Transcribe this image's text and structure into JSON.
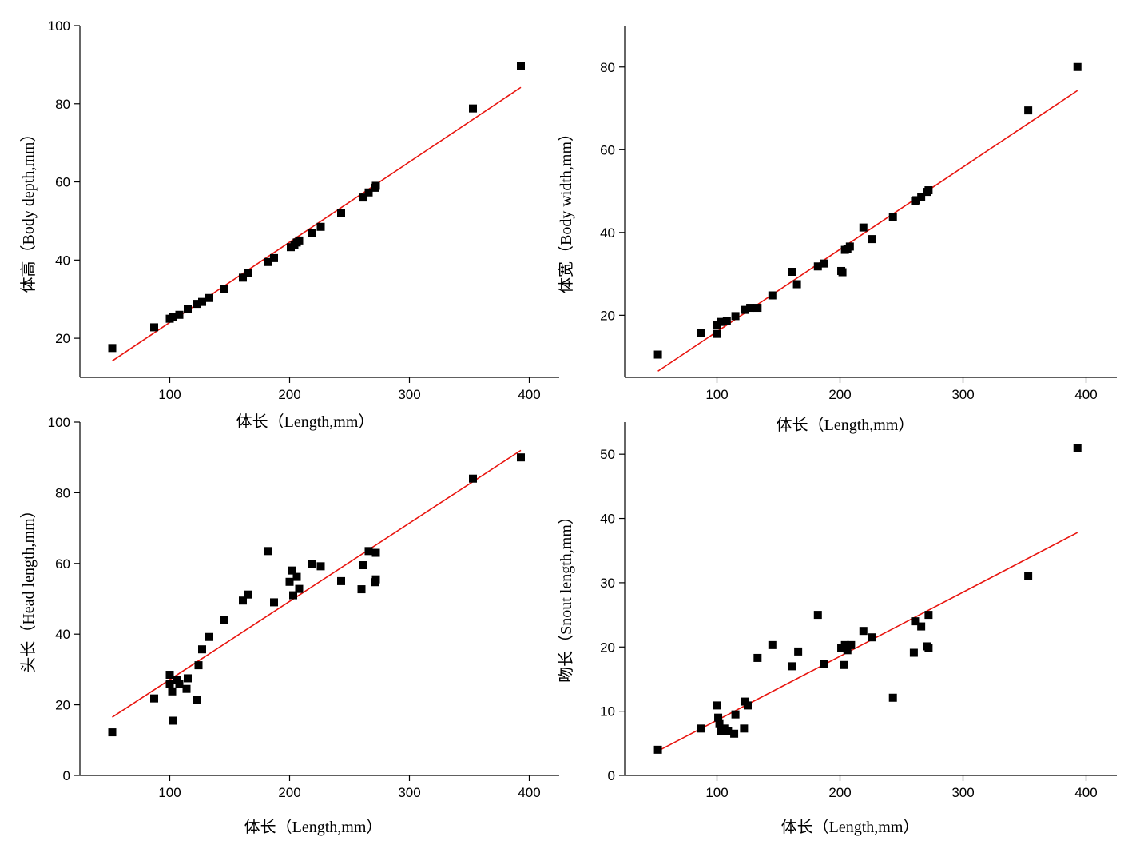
{
  "colors": {
    "points": "#000000",
    "fit_line": "#e8140e"
  },
  "chart_data": [
    {
      "type": "scatter",
      "xlabel": "体长（Length,mm）",
      "ylabel": "体高（Body depth,mm）",
      "xlim": [
        25,
        425
      ],
      "ylim": [
        10,
        100
      ],
      "xticks": [
        100,
        200,
        300,
        400
      ],
      "yticks": [
        20,
        40,
        60,
        80,
        100
      ],
      "points": [
        [
          52,
          17.5
        ],
        [
          87,
          22.8
        ],
        [
          100,
          25
        ],
        [
          103,
          25.5
        ],
        [
          108,
          26
        ],
        [
          115,
          27.5
        ],
        [
          123,
          28.8
        ],
        [
          127,
          29.3
        ],
        [
          133,
          30.3
        ],
        [
          145,
          32.5
        ],
        [
          161,
          35.5
        ],
        [
          165,
          36.7
        ],
        [
          182,
          39.5
        ],
        [
          187,
          40.5
        ],
        [
          201,
          43.3
        ],
        [
          204,
          43.8
        ],
        [
          206,
          44.5
        ],
        [
          208,
          45
        ],
        [
          219,
          47
        ],
        [
          226,
          48.5
        ],
        [
          243,
          52
        ],
        [
          261,
          56
        ],
        [
          266,
          57.3
        ],
        [
          271,
          58.5
        ],
        [
          272,
          59
        ],
        [
          353,
          78.8
        ],
        [
          393,
          89.7
        ]
      ],
      "fit": [
        [
          52,
          14.2
        ],
        [
          393,
          84.2
        ]
      ]
    },
    {
      "type": "scatter",
      "xlabel": "体长（Length,mm）",
      "ylabel": "体宽（Body width,mm）",
      "xlim": [
        25,
        425
      ],
      "ylim": [
        5,
        90
      ],
      "xticks": [
        100,
        200,
        300,
        400
      ],
      "yticks": [
        20,
        40,
        60,
        80
      ],
      "points": [
        [
          52,
          10.5
        ],
        [
          87,
          15.7
        ],
        [
          100,
          15.5
        ],
        [
          100,
          17.6
        ],
        [
          103,
          18.4
        ],
        [
          108,
          18.6
        ],
        [
          115,
          19.8
        ],
        [
          123,
          21.3
        ],
        [
          127,
          21.8
        ],
        [
          133,
          21.8
        ],
        [
          145,
          24.8
        ],
        [
          161,
          30.5
        ],
        [
          165,
          27.5
        ],
        [
          182,
          31.8
        ],
        [
          187,
          32.5
        ],
        [
          201,
          30.7
        ],
        [
          202,
          30.4
        ],
        [
          204,
          35.8
        ],
        [
          206,
          36
        ],
        [
          208,
          36.6
        ],
        [
          219,
          41.2
        ],
        [
          226,
          38.4
        ],
        [
          243,
          43.8
        ],
        [
          261,
          47.5
        ],
        [
          262,
          47.8
        ],
        [
          266,
          48.6
        ],
        [
          271,
          49.8
        ],
        [
          272,
          50.2
        ],
        [
          353,
          69.5
        ],
        [
          393,
          80
        ]
      ],
      "fit": [
        [
          52,
          6.5
        ],
        [
          393,
          74.3
        ]
      ]
    },
    {
      "type": "scatter",
      "xlabel": "体长（Length,mm）",
      "ylabel": "头长（Head length,mm）",
      "xlim": [
        25,
        425
      ],
      "ylim": [
        0,
        100
      ],
      "xticks": [
        100,
        200,
        300,
        400
      ],
      "yticks": [
        0,
        20,
        40,
        60,
        80,
        100
      ],
      "points": [
        [
          52,
          12.2
        ],
        [
          87,
          21.8
        ],
        [
          100,
          28.5
        ],
        [
          100,
          26
        ],
        [
          102,
          23.8
        ],
        [
          103,
          15.5
        ],
        [
          106,
          27
        ],
        [
          108,
          26
        ],
        [
          114,
          24.5
        ],
        [
          115,
          27.5
        ],
        [
          123,
          21.3
        ],
        [
          124,
          31.2
        ],
        [
          127,
          35.7
        ],
        [
          133,
          39.2
        ],
        [
          145,
          44
        ],
        [
          161,
          49.5
        ],
        [
          165,
          51.2
        ],
        [
          182,
          63.5
        ],
        [
          187,
          49
        ],
        [
          200,
          54.8
        ],
        [
          202,
          58
        ],
        [
          203,
          51
        ],
        [
          206,
          56.2
        ],
        [
          208,
          52.8
        ],
        [
          219,
          59.8
        ],
        [
          226,
          59.2
        ],
        [
          243,
          55
        ],
        [
          260,
          52.7
        ],
        [
          261,
          59.5
        ],
        [
          266,
          63.5
        ],
        [
          271,
          54.7
        ],
        [
          272,
          55.5
        ],
        [
          272,
          63
        ],
        [
          353,
          84
        ],
        [
          393,
          90
        ]
      ],
      "fit": [
        [
          52,
          16.5
        ],
        [
          393,
          92
        ]
      ]
    },
    {
      "type": "scatter",
      "xlabel": "体长（Length,mm）",
      "ylabel": "吻长（Snout length,mm）",
      "xlim": [
        25,
        425
      ],
      "ylim": [
        0,
        55
      ],
      "xticks": [
        100,
        200,
        300,
        400
      ],
      "yticks": [
        0,
        10,
        20,
        30,
        40,
        50
      ],
      "points": [
        [
          52,
          4
        ],
        [
          87,
          7.3
        ],
        [
          100,
          10.9
        ],
        [
          101,
          9
        ],
        [
          102,
          8
        ],
        [
          103,
          6.9
        ],
        [
          106,
          7.3
        ],
        [
          109,
          6.9
        ],
        [
          114,
          6.5
        ],
        [
          115,
          9.5
        ],
        [
          122,
          7.3
        ],
        [
          123,
          11.5
        ],
        [
          125,
          10.9
        ],
        [
          133,
          18.3
        ],
        [
          145,
          20.3
        ],
        [
          161,
          17
        ],
        [
          166,
          19.3
        ],
        [
          182,
          25
        ],
        [
          187,
          17.4
        ],
        [
          201,
          19.8
        ],
        [
          203,
          17.2
        ],
        [
          204,
          20.3
        ],
        [
          206,
          19.5
        ],
        [
          209,
          20.3
        ],
        [
          219,
          22.5
        ],
        [
          226,
          21.5
        ],
        [
          243,
          12.1
        ],
        [
          260,
          19.1
        ],
        [
          261,
          24
        ],
        [
          266,
          23.2
        ],
        [
          271,
          20.1
        ],
        [
          272,
          19.8
        ],
        [
          272,
          25
        ],
        [
          353,
          31.1
        ],
        [
          393,
          51
        ]
      ],
      "fit": [
        [
          52,
          3.8
        ],
        [
          393,
          37.8
        ]
      ]
    }
  ]
}
